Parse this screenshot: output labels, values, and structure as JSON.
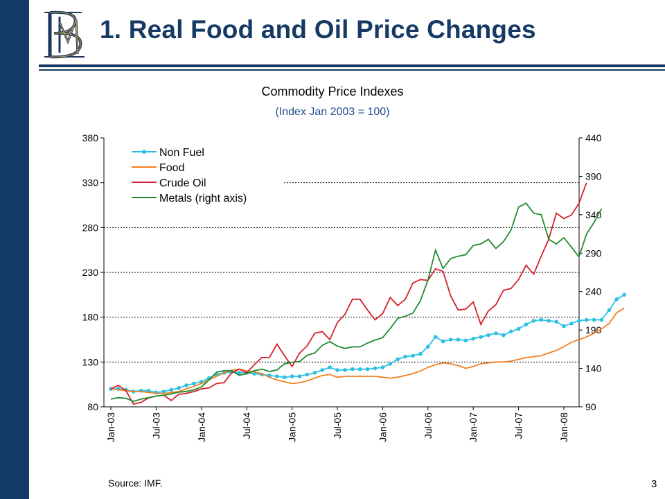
{
  "slide": {
    "title": "1. Real Food and Oil Price Changes",
    "source": "Source: IMF.",
    "page_number": "3",
    "logo": "BM monogram",
    "colors": {
      "sidebar": "#123a66",
      "title": "#163a63",
      "subtitle": "#1f4e8c"
    }
  },
  "chart_data": {
    "type": "line",
    "title": "Commodity Price Indexes",
    "subtitle": "(Index Jan 2003 = 100)",
    "xlabel": "",
    "ylabel": "",
    "ylim": [
      80,
      380
    ],
    "y_ticks": [
      80,
      130,
      180,
      230,
      280,
      330,
      380
    ],
    "y2lim": [
      90,
      440
    ],
    "y2_ticks": [
      90,
      140,
      190,
      240,
      290,
      340,
      390,
      440
    ],
    "grid": "horizontal dashed",
    "legend_position": "top-left",
    "x_tick_labels": [
      "Jan-03",
      "Jul-03",
      "Jan-04",
      "Jul-04",
      "Jan-05",
      "Jul-05",
      "Jan-06",
      "Jul-06",
      "Jan-07",
      "Jul-07",
      "Jan-08"
    ],
    "x_tick_indices": [
      0,
      6,
      12,
      18,
      24,
      30,
      36,
      42,
      48,
      54,
      60
    ],
    "series": [
      {
        "name": "Non Fuel",
        "color": "#2bc0e4",
        "axis": "left",
        "marker": "circle",
        "values": [
          100,
          100,
          99,
          97,
          98,
          98,
          96,
          97,
          99,
          101,
          104,
          106,
          108,
          112,
          116,
          118,
          119,
          118,
          118,
          117,
          116,
          115,
          114,
          113,
          114,
          114,
          116,
          118,
          121,
          124,
          121,
          121,
          122,
          122,
          122,
          123,
          124,
          128,
          133,
          136,
          137,
          139,
          147,
          158,
          153,
          155,
          155,
          154,
          156,
          158,
          160,
          162,
          160,
          164,
          167,
          172,
          176,
          177,
          176,
          175,
          170,
          173,
          176,
          177,
          177,
          177,
          188,
          200,
          205
        ]
      },
      {
        "name": "Food",
        "color": "#f07f22",
        "axis": "left",
        "values": [
          100,
          99,
          98,
          97,
          97,
          96,
          95,
          95,
          96,
          97,
          100,
          103,
          106,
          110,
          114,
          118,
          121,
          122,
          120,
          119,
          117,
          113,
          110,
          108,
          106,
          107,
          109,
          112,
          115,
          116,
          113,
          114,
          114,
          114,
          114,
          114,
          113,
          112,
          113,
          115,
          117,
          120,
          124,
          127,
          129,
          128,
          126,
          123,
          125,
          128,
          129,
          130,
          130,
          131,
          133,
          135,
          136,
          137,
          140,
          143,
          147,
          152,
          155,
          158,
          162,
          167,
          173,
          185,
          190
        ]
      },
      {
        "name": "Crude Oil",
        "color": "#d3212a",
        "axis": "left",
        "values": [
          100,
          104,
          98,
          83,
          85,
          90,
          92,
          93,
          87,
          94,
          95,
          97,
          100,
          101,
          106,
          107,
          118,
          122,
          118,
          127,
          135,
          135,
          150,
          137,
          125,
          140,
          148,
          162,
          164,
          155,
          174,
          183,
          200,
          200,
          188,
          177,
          184,
          202,
          193,
          200,
          218,
          222,
          221,
          234,
          231,
          204,
          188,
          189,
          197,
          172,
          187,
          194,
          210,
          212,
          222,
          238,
          228,
          248,
          267,
          296,
          290,
          294,
          307,
          330
        ]
      },
      {
        "name": "Metals (right axis)",
        "color": "#1f8a2f",
        "axis": "right",
        "values": [
          100,
          102,
          101,
          97,
          100,
          102,
          104,
          105,
          107,
          109,
          110,
          112,
          116,
          125,
          135,
          137,
          137,
          131,
          133,
          137,
          139,
          136,
          138,
          146,
          148,
          149,
          157,
          160,
          170,
          175,
          169,
          166,
          168,
          168,
          173,
          177,
          180,
          192,
          205,
          208,
          212,
          228,
          255,
          294,
          270,
          283,
          286,
          288,
          300,
          302,
          308,
          296,
          305,
          320,
          350,
          355,
          342,
          340,
          308,
          302,
          310,
          298,
          285,
          315,
          330,
          348
        ]
      }
    ]
  }
}
